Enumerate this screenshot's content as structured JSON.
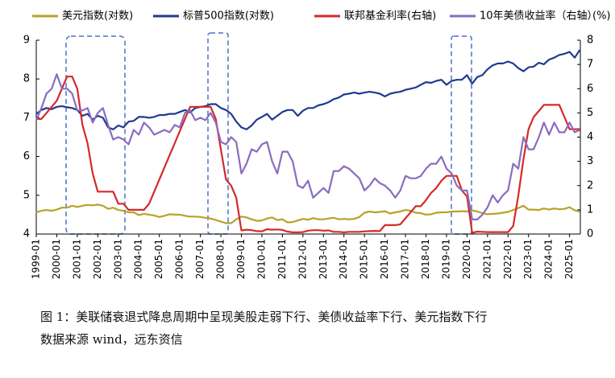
{
  "chart_data": {
    "type": "line",
    "x": [
      "1999-01",
      "1999-04",
      "1999-07",
      "1999-10",
      "2000-01",
      "2000-04",
      "2000-07",
      "2000-10",
      "2001-01",
      "2001-04",
      "2001-07",
      "2001-10",
      "2002-01",
      "2002-04",
      "2002-07",
      "2002-10",
      "2003-01",
      "2003-04",
      "2003-07",
      "2003-10",
      "2004-01",
      "2004-04",
      "2004-07",
      "2004-10",
      "2005-01",
      "2005-04",
      "2005-07",
      "2005-10",
      "2006-01",
      "2006-04",
      "2006-07",
      "2006-10",
      "2007-01",
      "2007-04",
      "2007-07",
      "2007-10",
      "2008-01",
      "2008-04",
      "2008-07",
      "2008-10",
      "2009-01",
      "2009-04",
      "2009-07",
      "2009-10",
      "2010-01",
      "2010-04",
      "2010-07",
      "2010-10",
      "2011-01",
      "2011-04",
      "2011-07",
      "2011-10",
      "2012-01",
      "2012-04",
      "2012-07",
      "2012-10",
      "2013-01",
      "2013-04",
      "2013-07",
      "2013-10",
      "2014-01",
      "2014-04",
      "2014-07",
      "2014-10",
      "2015-01",
      "2015-04",
      "2015-07",
      "2015-10",
      "2016-01",
      "2016-04",
      "2016-07",
      "2016-10",
      "2017-01",
      "2017-04",
      "2017-07",
      "2017-10",
      "2018-01",
      "2018-04",
      "2018-07",
      "2018-10",
      "2019-01",
      "2019-04",
      "2019-07",
      "2019-10",
      "2020-01",
      "2020-04",
      "2020-07",
      "2020-10",
      "2021-01",
      "2021-04",
      "2021-07",
      "2021-10",
      "2022-01",
      "2022-04",
      "2022-07",
      "2022-10",
      "2023-01",
      "2023-04",
      "2023-07",
      "2023-10",
      "2024-01",
      "2024-04",
      "2024-07",
      "2024-10",
      "2025-01",
      "2025-04",
      "2025-07"
    ],
    "series": [
      {
        "name": "美元指数(对数)",
        "color": "#b8a22a",
        "values": [
          4.56,
          4.6,
          4.62,
          4.6,
          4.63,
          4.68,
          4.68,
          4.73,
          4.7,
          4.73,
          4.75,
          4.74,
          4.76,
          4.73,
          4.65,
          4.68,
          4.62,
          4.6,
          4.56,
          4.56,
          4.49,
          4.52,
          4.5,
          4.48,
          4.44,
          4.47,
          4.51,
          4.5,
          4.5,
          4.47,
          4.45,
          4.45,
          4.44,
          4.42,
          4.4,
          4.36,
          4.32,
          4.28,
          4.28,
          4.38,
          4.45,
          4.43,
          4.38,
          4.34,
          4.35,
          4.4,
          4.43,
          4.36,
          4.38,
          4.3,
          4.31,
          4.35,
          4.39,
          4.37,
          4.41,
          4.38,
          4.38,
          4.4,
          4.42,
          4.38,
          4.39,
          4.38,
          4.39,
          4.44,
          4.55,
          4.58,
          4.56,
          4.57,
          4.59,
          4.53,
          4.56,
          4.58,
          4.62,
          4.6,
          4.55,
          4.54,
          4.5,
          4.51,
          4.55,
          4.56,
          4.56,
          4.58,
          4.58,
          4.59,
          4.58,
          4.61,
          4.58,
          4.54,
          4.51,
          4.52,
          4.53,
          4.55,
          4.57,
          4.62,
          4.67,
          4.73,
          4.63,
          4.63,
          4.62,
          4.66,
          4.63,
          4.66,
          4.64,
          4.65,
          4.69,
          4.61,
          4.58
        ]
      },
      {
        "name": "标普500指数(对数)",
        "color": "#1f3a8f",
        "values": [
          7.1,
          7.2,
          7.25,
          7.22,
          7.28,
          7.3,
          7.27,
          7.25,
          7.2,
          7.05,
          7.1,
          6.95,
          7.05,
          7.0,
          6.75,
          6.7,
          6.8,
          6.75,
          6.9,
          6.92,
          7.02,
          7.02,
          7.0,
          7.02,
          7.07,
          7.07,
          7.1,
          7.1,
          7.15,
          7.2,
          7.14,
          7.25,
          7.28,
          7.3,
          7.35,
          7.35,
          7.25,
          7.2,
          7.1,
          6.9,
          6.75,
          6.7,
          6.8,
          6.95,
          7.02,
          7.1,
          6.95,
          7.05,
          7.15,
          7.2,
          7.2,
          7.05,
          7.18,
          7.25,
          7.25,
          7.32,
          7.35,
          7.4,
          7.48,
          7.52,
          7.6,
          7.62,
          7.65,
          7.62,
          7.65,
          7.67,
          7.65,
          7.62,
          7.55,
          7.62,
          7.65,
          7.67,
          7.72,
          7.75,
          7.78,
          7.85,
          7.92,
          7.9,
          7.95,
          7.98,
          7.85,
          7.95,
          7.98,
          7.98,
          8.1,
          7.88,
          8.05,
          8.1,
          8.25,
          8.35,
          8.4,
          8.4,
          8.45,
          8.4,
          8.28,
          8.2,
          8.3,
          8.32,
          8.42,
          8.38,
          8.5,
          8.55,
          8.62,
          8.65,
          8.7,
          8.55,
          8.75
        ]
      },
      {
        "name": "联邦基金利率(右轴)",
        "color": "#d42a2a",
        "axis": "y2",
        "values": [
          4.75,
          4.75,
          5.0,
          5.25,
          5.5,
          6.0,
          6.5,
          6.5,
          6.0,
          4.5,
          3.75,
          2.5,
          1.75,
          1.75,
          1.75,
          1.75,
          1.25,
          1.25,
          1.0,
          1.0,
          1.0,
          1.0,
          1.25,
          1.75,
          2.25,
          2.75,
          3.25,
          3.75,
          4.25,
          4.75,
          5.25,
          5.25,
          5.25,
          5.25,
          5.25,
          4.75,
          3.5,
          2.25,
          2.0,
          1.5,
          0.15,
          0.18,
          0.16,
          0.12,
          0.11,
          0.2,
          0.18,
          0.19,
          0.17,
          0.1,
          0.07,
          0.07,
          0.08,
          0.14,
          0.16,
          0.16,
          0.14,
          0.15,
          0.09,
          0.09,
          0.07,
          0.09,
          0.09,
          0.09,
          0.11,
          0.12,
          0.13,
          0.12,
          0.37,
          0.37,
          0.37,
          0.4,
          0.65,
          0.9,
          1.15,
          1.15,
          1.4,
          1.7,
          1.9,
          2.2,
          2.4,
          2.4,
          2.4,
          1.8,
          1.55,
          0.05,
          0.1,
          0.09,
          0.08,
          0.08,
          0.08,
          0.08,
          0.08,
          0.33,
          1.58,
          3.08,
          4.33,
          4.83,
          5.08,
          5.33,
          5.33,
          5.33,
          5.33,
          4.83,
          4.33,
          4.33,
          4.33
        ]
      },
      {
        "name": "10年美债收益率（右轴）",
        "color": "#8a6cc0",
        "axis": "y2",
        "values": [
          4.7,
          5.2,
          5.8,
          6.0,
          6.6,
          6.0,
          6.0,
          5.8,
          5.1,
          5.1,
          5.2,
          4.6,
          5.0,
          5.2,
          4.5,
          3.9,
          4.0,
          3.9,
          3.7,
          4.3,
          4.1,
          4.6,
          4.4,
          4.1,
          4.2,
          4.3,
          4.2,
          4.5,
          4.4,
          5.0,
          5.1,
          4.7,
          4.8,
          4.7,
          5.0,
          4.6,
          3.8,
          3.7,
          4.0,
          3.8,
          2.5,
          2.9,
          3.5,
          3.4,
          3.7,
          3.8,
          3.0,
          2.5,
          3.4,
          3.4,
          3.0,
          2.0,
          1.9,
          2.2,
          1.5,
          1.7,
          1.9,
          1.7,
          2.6,
          2.6,
          2.8,
          2.7,
          2.5,
          2.3,
          1.8,
          2.0,
          2.3,
          2.1,
          2.0,
          1.8,
          1.5,
          1.8,
          2.4,
          2.3,
          2.3,
          2.4,
          2.7,
          2.9,
          2.9,
          3.2,
          2.7,
          2.5,
          2.0,
          1.8,
          1.8,
          0.6,
          0.6,
          0.8,
          1.1,
          1.6,
          1.3,
          1.6,
          1.8,
          2.9,
          2.7,
          4.0,
          3.5,
          3.5,
          4.0,
          4.6,
          4.1,
          4.6,
          4.2,
          4.2,
          4.6,
          4.2,
          4.3
        ]
      }
    ],
    "ylim": [
      4,
      9
    ],
    "yticks": [
      4,
      5,
      6,
      7,
      8,
      9
    ],
    "y2lim": [
      0,
      8
    ],
    "y2ticks": [
      0,
      1,
      2,
      3,
      4,
      5,
      6,
      7,
      8
    ],
    "y2label": "(%)",
    "caption": "图 1：美联储衰退式降息周期中呈现美股走弱下行、美债收益率下行、美元指数下行",
    "source": "数据来源 wind，远东资信"
  }
}
